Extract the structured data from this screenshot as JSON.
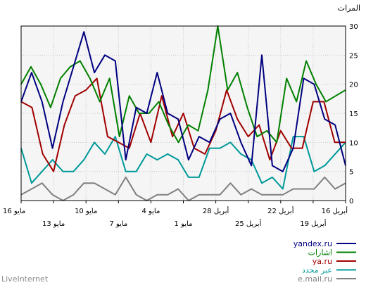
{
  "chart_data": {
    "type": "line",
    "title": "المرات",
    "ylim": [
      0,
      30
    ],
    "yticks": [
      0,
      5,
      10,
      15,
      20,
      25,
      30
    ],
    "grid": true,
    "legend_position": "bottom-right",
    "x_tick_labels": [
      {
        "label": "16 أبريل",
        "index": 0,
        "row": 1
      },
      {
        "label": "19 أبريل",
        "index": 3,
        "row": 2
      },
      {
        "label": "22 أبريل",
        "index": 6,
        "row": 1
      },
      {
        "label": "25 أبريل",
        "index": 9,
        "row": 2
      },
      {
        "label": "28 أبريل",
        "index": 12,
        "row": 1
      },
      {
        "label": "1 مايو",
        "index": 15,
        "row": 2
      },
      {
        "label": "4 مايو",
        "index": 18,
        "row": 1
      },
      {
        "label": "7 مايو",
        "index": 21,
        "row": 2
      },
      {
        "label": "10 مايو",
        "index": 24,
        "row": 1
      },
      {
        "label": "13 مايو",
        "index": 27,
        "row": 2
      },
      {
        "label": "16 مايو",
        "index": 30,
        "row": 1
      }
    ],
    "series": [
      {
        "name": "yandex.ru",
        "color": "#000080",
        "values": [
          17,
          22,
          17,
          9,
          17,
          23,
          29,
          22,
          25,
          24,
          7,
          16,
          15,
          22,
          15,
          14,
          7,
          11,
          10,
          14,
          15,
          10,
          6,
          25,
          6,
          5,
          9,
          21,
          20,
          14,
          13,
          6
        ]
      },
      {
        "name": "اشارات",
        "color": "#008000",
        "values": [
          20,
          23,
          20,
          16,
          21,
          23,
          24,
          21,
          17,
          21,
          11,
          18,
          15,
          15,
          17,
          13,
          10,
          13,
          12,
          19,
          30,
          19,
          22,
          16,
          11,
          12,
          10,
          21,
          17,
          24,
          20,
          17,
          18,
          19
        ]
      },
      {
        "name": "ya.ru",
        "color": "#a00000",
        "values": [
          17,
          16,
          8,
          5,
          13,
          18,
          19,
          21,
          11,
          10,
          9,
          15,
          10,
          18,
          11,
          15,
          9,
          8,
          12,
          19,
          14,
          11,
          13,
          7,
          12,
          9,
          9,
          17,
          17,
          10,
          10
        ]
      },
      {
        "name": "عبر محدد",
        "color": "#009999",
        "values": [
          9,
          3,
          5,
          7,
          5,
          5,
          7,
          10,
          8,
          11,
          5,
          5,
          8,
          7,
          8,
          7,
          4,
          4,
          9,
          9,
          10,
          8,
          7,
          3,
          4,
          2,
          11,
          11,
          5,
          6,
          8,
          10
        ]
      },
      {
        "name": "e.mail.ru",
        "color": "#808080",
        "values": [
          1,
          2,
          3,
          1,
          0,
          1,
          3,
          3,
          2,
          1,
          4,
          1,
          0,
          1,
          1,
          2,
          0,
          1,
          1,
          1,
          3,
          1,
          2,
          1,
          1,
          1,
          2,
          2,
          2,
          4,
          2,
          3
        ]
      }
    ]
  },
  "footer": {
    "brand": "LiveInternet"
  }
}
